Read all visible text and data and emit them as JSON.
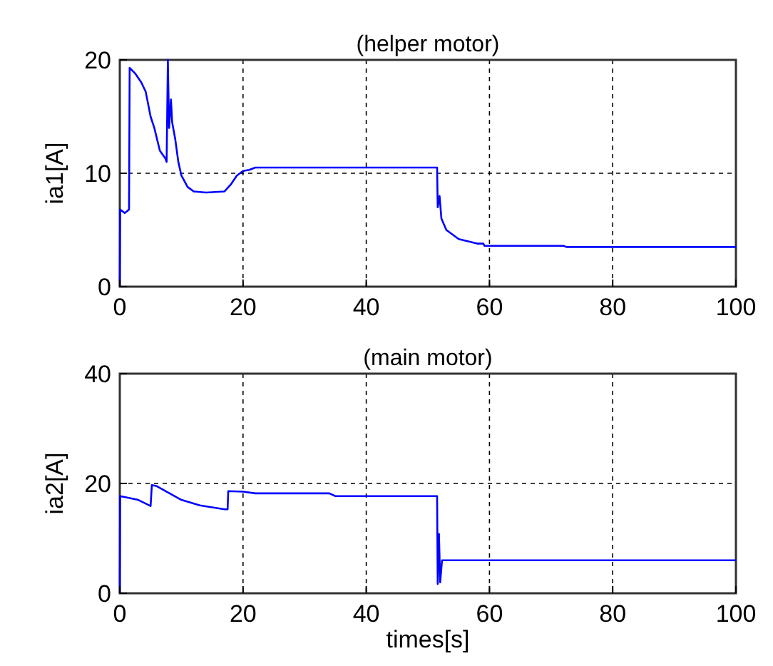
{
  "chart_data": [
    {
      "type": "line",
      "title": "(helper motor)",
      "ylabel": "ia1[A]",
      "xlim": [
        0,
        100
      ],
      "ylim": [
        0,
        20
      ],
      "xticks": [
        0,
        20,
        40,
        60,
        80,
        100
      ],
      "yticks": [
        0,
        10,
        20
      ],
      "grid": true,
      "series": [
        {
          "color": "#0000ff",
          "x": [
            0,
            0.05,
            0.8,
            1.5,
            1.6,
            2.5,
            3.5,
            4.2,
            5,
            5.6,
            6.5,
            7.4,
            7.6,
            7.8,
            8.0,
            8.3,
            8.5,
            9,
            9.5,
            10,
            11,
            12,
            14,
            17,
            18,
            19,
            20,
            21,
            22,
            51.5,
            51.6,
            51.9,
            52.2,
            53,
            55,
            58,
            59,
            59.2,
            72,
            72.5,
            100
          ],
          "values": [
            0,
            6.8,
            6.5,
            6.8,
            19.3,
            18.8,
            18,
            17.2,
            15,
            14,
            12,
            11.3,
            11,
            20,
            14,
            16.5,
            14.5,
            13,
            11,
            9.8,
            8.8,
            8.4,
            8.3,
            8.4,
            9,
            9.8,
            10.2,
            10.3,
            10.5,
            10.5,
            7,
            8,
            6,
            5,
            4.2,
            3.8,
            3.8,
            3.6,
            3.6,
            3.5,
            3.5
          ]
        }
      ]
    },
    {
      "type": "line",
      "title": "(main motor)",
      "xlabel": "times[s]",
      "ylabel": "ia2[A]",
      "xlim": [
        0,
        100
      ],
      "ylim": [
        0,
        40
      ],
      "xticks": [
        0,
        20,
        40,
        60,
        80,
        100
      ],
      "yticks": [
        0,
        20,
        40
      ],
      "grid": true,
      "series": [
        {
          "color": "#0000ff",
          "x": [
            0,
            0.05,
            3,
            5,
            5.2,
            6,
            10,
            13,
            17,
            17.5,
            17.6,
            20,
            22,
            34,
            35,
            51.5,
            51.6,
            51.8,
            52,
            52.3,
            100
          ],
          "values": [
            0,
            17.7,
            17,
            15.9,
            19.7,
            19.5,
            17,
            16,
            15.3,
            15.3,
            18.6,
            18.5,
            18.2,
            18.2,
            17.7,
            17.7,
            1.7,
            10.8,
            2,
            6,
            6
          ]
        }
      ]
    }
  ]
}
